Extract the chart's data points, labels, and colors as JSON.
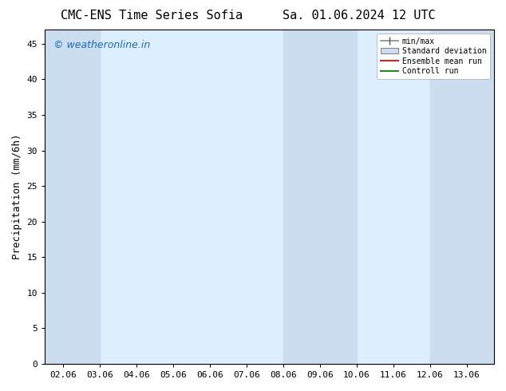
{
  "title_left": "CMC-ENS Time Series Sofia",
  "title_right": "Sa. 01.06.2024 12 UTC",
  "ylabel": "Precipitation (mm/6h)",
  "watermark": "© weatheronline.in",
  "watermark_color": "#1a6ac2",
  "xlim_min": 1.5,
  "xlim_max": 13.75,
  "ylim_min": 0,
  "ylim_max": 47,
  "yticks": [
    0,
    5,
    10,
    15,
    20,
    25,
    30,
    35,
    40,
    45
  ],
  "xtick_labels": [
    "02.06",
    "03.06",
    "04.06",
    "05.06",
    "06.06",
    "07.06",
    "08.06",
    "09.06",
    "10.06",
    "11.06",
    "12.06",
    "13.06"
  ],
  "xtick_positions": [
    2.0,
    3.0,
    4.0,
    5.0,
    6.0,
    7.0,
    8.0,
    9.0,
    10.0,
    11.0,
    12.0,
    13.0
  ],
  "shaded_bands": [
    {
      "x_start": 1.5,
      "x_end": 3.0
    },
    {
      "x_start": 8.0,
      "x_end": 10.0
    },
    {
      "x_start": 12.0,
      "x_end": 13.75
    }
  ],
  "plot_bg_color": "#ddeeff",
  "shaded_color": "#ccddf0",
  "bg_color": "#ffffff",
  "legend_labels": [
    "min/max",
    "Standard deviation",
    "Ensemble mean run",
    "Controll run"
  ],
  "legend_line_color": "#888888",
  "legend_patch_color": "#ccddf0",
  "legend_red": "#dd2222",
  "legend_green": "#228822",
  "font_family": "DejaVu Sans Mono",
  "title_fontsize": 11,
  "ylabel_fontsize": 9,
  "tick_fontsize": 8,
  "watermark_fontsize": 9
}
